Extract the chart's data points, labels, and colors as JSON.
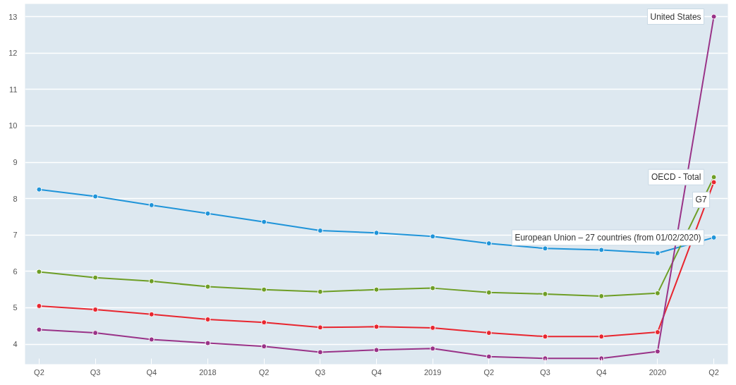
{
  "chart_data": {
    "type": "line",
    "categories": [
      "Q2",
      "Q3",
      "Q4",
      "2018",
      "Q2",
      "Q3",
      "Q4",
      "2019",
      "Q2",
      "Q3",
      "Q4",
      "2020",
      "Q2"
    ],
    "series": [
      {
        "name": "European Union – 27 countries (from 01/02/2020)",
        "color": "#1f94d9",
        "values": [
          8.25,
          8.06,
          7.82,
          7.59,
          7.36,
          7.12,
          7.06,
          6.96,
          6.77,
          6.63,
          6.59,
          6.5,
          6.93
        ]
      },
      {
        "name": "OECD - Total",
        "color": "#6e9e26",
        "values": [
          5.99,
          5.83,
          5.73,
          5.58,
          5.5,
          5.44,
          5.5,
          5.54,
          5.42,
          5.38,
          5.32,
          5.4,
          8.59
        ]
      },
      {
        "name": "G7",
        "color": "#e8262f",
        "values": [
          5.05,
          4.95,
          4.82,
          4.68,
          4.6,
          4.46,
          4.48,
          4.45,
          4.31,
          4.21,
          4.21,
          4.33,
          8.45
        ]
      },
      {
        "name": "United States",
        "color": "#993388",
        "values": [
          4.4,
          4.31,
          4.13,
          4.03,
          3.94,
          3.78,
          3.84,
          3.88,
          3.66,
          3.61,
          3.61,
          3.8,
          13.0
        ]
      }
    ],
    "ylim": [
      3.45,
      13.35
    ],
    "yticks": [
      4,
      5,
      6,
      7,
      8,
      9,
      10,
      11,
      12,
      13
    ],
    "grid": "y",
    "legend": false,
    "marker": "circle",
    "line_style": "solid"
  }
}
